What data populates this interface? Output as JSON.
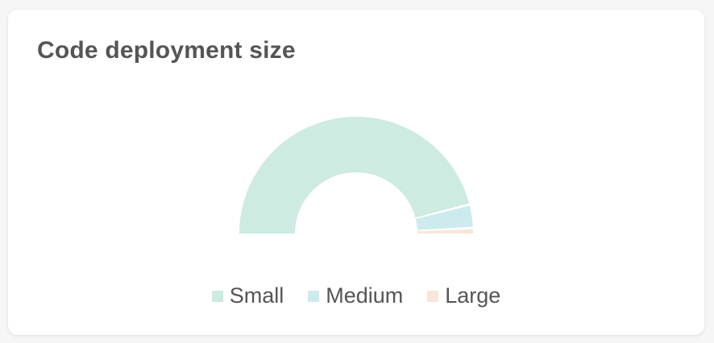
{
  "card": {
    "title": "Code deployment size"
  },
  "chart_data": {
    "type": "pie",
    "variant": "semi-donut",
    "title": "Code deployment size",
    "legend_position": "bottom",
    "series": [
      {
        "name": "Small",
        "value": 92.0,
        "color": "#cdebe0"
      },
      {
        "name": "Medium",
        "value": 6.5,
        "color": "#cdebee"
      },
      {
        "name": "Large",
        "value": 1.5,
        "color": "#f8e6d8"
      }
    ]
  }
}
